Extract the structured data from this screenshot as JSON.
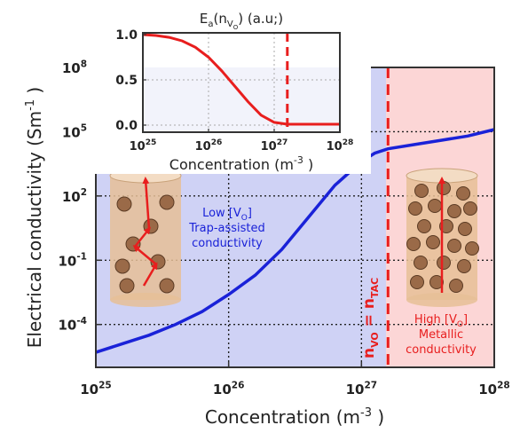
{
  "colors": {
    "low_region": "#cfd2f5",
    "high_region": "#fcd6d6",
    "main_curve": "#1a22d8",
    "inset_curve": "#e81e1e",
    "threshold": "#e81e1e",
    "annotation_blue": "#1a22d8",
    "annotation_red": "#e81e1e",
    "cylinder": "#e6bf96",
    "particle": "#9a6a48"
  },
  "chart_data": [
    {
      "type": "line",
      "role": "main",
      "xlabel": "Concentration (m",
      "xlabel_sup": "-3",
      "xlabel_tail": " )",
      "ylabel": "Electrical conductivity (Sm",
      "ylabel_sup": "-1",
      "ylabel_tail": " )",
      "x_scale": "log",
      "y_scale": "log",
      "xlim_exp": [
        25,
        28
      ],
      "ylim_exp": [
        -6,
        8
      ],
      "x_ticks": [
        {
          "base": "10",
          "exp": "25",
          "value": 25
        },
        {
          "base": "10",
          "exp": "26",
          "value": 26
        },
        {
          "base": "10",
          "exp": "27",
          "value": 27
        },
        {
          "base": "10",
          "exp": "28",
          "value": 28
        }
      ],
      "y_ticks": [
        {
          "base": "10",
          "exp": "-4",
          "value": -4
        },
        {
          "base": "10",
          "exp": "-1",
          "value": -1
        },
        {
          "base": "10",
          "exp": "2",
          "value": 2
        },
        {
          "base": "10",
          "exp": "5",
          "value": 5
        },
        {
          "base": "10",
          "exp": "8",
          "value": 8
        }
      ],
      "grid": "dotted",
      "threshold_exp": 27.2,
      "series": [
        {
          "x_exp": [
            25.0,
            25.2,
            25.4,
            25.6,
            25.8,
            26.0,
            26.2,
            26.4,
            26.6,
            26.8,
            27.0,
            27.1,
            27.2,
            27.4,
            27.6,
            27.8,
            28.0
          ],
          "y_exp": [
            -5.3,
            -4.9,
            -4.5,
            -4.0,
            -3.4,
            -2.6,
            -1.7,
            -0.5,
            1.0,
            2.5,
            3.6,
            4.0,
            4.2,
            4.4,
            4.6,
            4.8,
            5.1
          ]
        }
      ],
      "annotations": {
        "low_line1": "Low [V",
        "low_line1_sub": "O",
        "low_line1_tail": "]",
        "low_line2": "Trap-assisted",
        "low_line3": "conductivity",
        "high_line1": "High [V",
        "high_line1_sub": "O",
        "high_line1_tail": "]",
        "high_line2": "Metallic",
        "high_line3": "conductivity",
        "threshold_n": "n",
        "threshold_sub_left": "VO",
        "threshold_eq": " = n",
        "threshold_sub_right": "TAC"
      }
    },
    {
      "type": "line",
      "role": "inset",
      "title": "E",
      "title_sub": "a",
      "title_paren": "(n",
      "title_sub2": "V",
      "title_sub3": "O",
      "title_tail": ") (a.u;)",
      "xlabel": "Concentration (m",
      "xlabel_sup": "-3",
      "xlabel_tail": " )",
      "x_scale": "log",
      "xlim_exp": [
        25,
        28
      ],
      "ylim": [
        0,
        1
      ],
      "x_ticks": [
        {
          "base": "10",
          "exp": "25",
          "value": 25
        },
        {
          "base": "10",
          "exp": "26",
          "value": 26
        },
        {
          "base": "10",
          "exp": "27",
          "value": 27
        },
        {
          "base": "10",
          "exp": "28",
          "value": 28
        }
      ],
      "y_ticks": [
        {
          "label": "0.0",
          "value": 0.0
        },
        {
          "label": "0.5",
          "value": 0.5
        },
        {
          "label": "1.0",
          "value": 1.0
        }
      ],
      "threshold_exp": 27.2,
      "series": [
        {
          "x_exp": [
            25.0,
            25.2,
            25.4,
            25.6,
            25.8,
            26.0,
            26.2,
            26.4,
            26.6,
            26.8,
            27.0,
            27.2,
            27.4,
            27.6,
            27.8,
            28.0
          ],
          "y": [
            1.0,
            0.99,
            0.97,
            0.93,
            0.86,
            0.75,
            0.6,
            0.43,
            0.26,
            0.11,
            0.03,
            0.01,
            0.01,
            0.01,
            0.01,
            0.01
          ]
        }
      ]
    }
  ]
}
